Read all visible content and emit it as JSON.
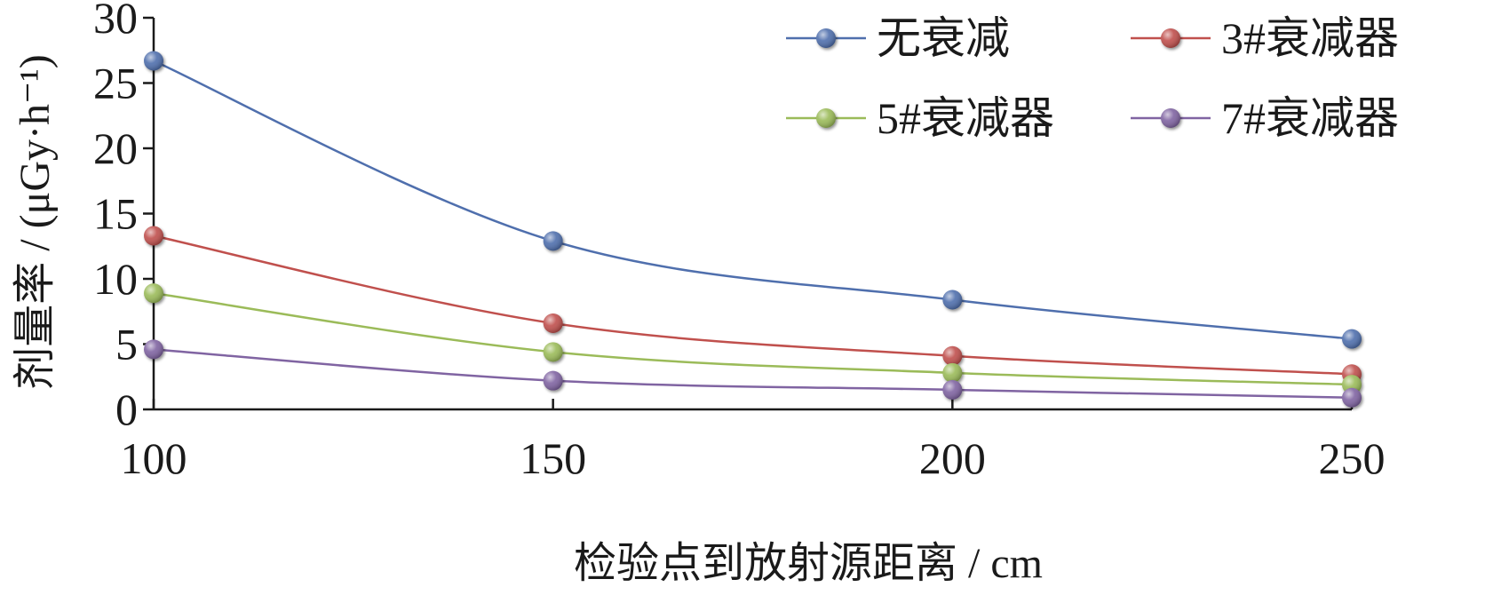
{
  "chart_data": {
    "type": "line",
    "x": [
      100,
      150,
      200,
      250
    ],
    "xlim": [
      100,
      250
    ],
    "ylim": [
      0,
      30
    ],
    "x_ticks": [
      "100",
      "150",
      "200",
      "250"
    ],
    "y_ticks": [
      "0",
      "5",
      "10",
      "15",
      "20",
      "25",
      "30"
    ],
    "xlabel": "检验点到放射源距离 / cm",
    "ylabel": "剂量率 / (μGy·h⁻¹)",
    "grid": false,
    "legend_position": "top-right",
    "series": [
      {
        "name": "无衰减",
        "color": "#4f6fad",
        "values": [
          26.7,
          12.9,
          8.4,
          5.4
        ]
      },
      {
        "name": "3#衰减器",
        "color": "#c0504d",
        "values": [
          13.3,
          6.6,
          4.1,
          2.7
        ]
      },
      {
        "name": "5#衰减器",
        "color": "#9bbb59",
        "values": [
          8.9,
          4.4,
          2.8,
          1.9
        ]
      },
      {
        "name": "7#衰减器",
        "color": "#8064a2",
        "values": [
          4.6,
          2.2,
          1.5,
          0.9
        ]
      }
    ]
  }
}
